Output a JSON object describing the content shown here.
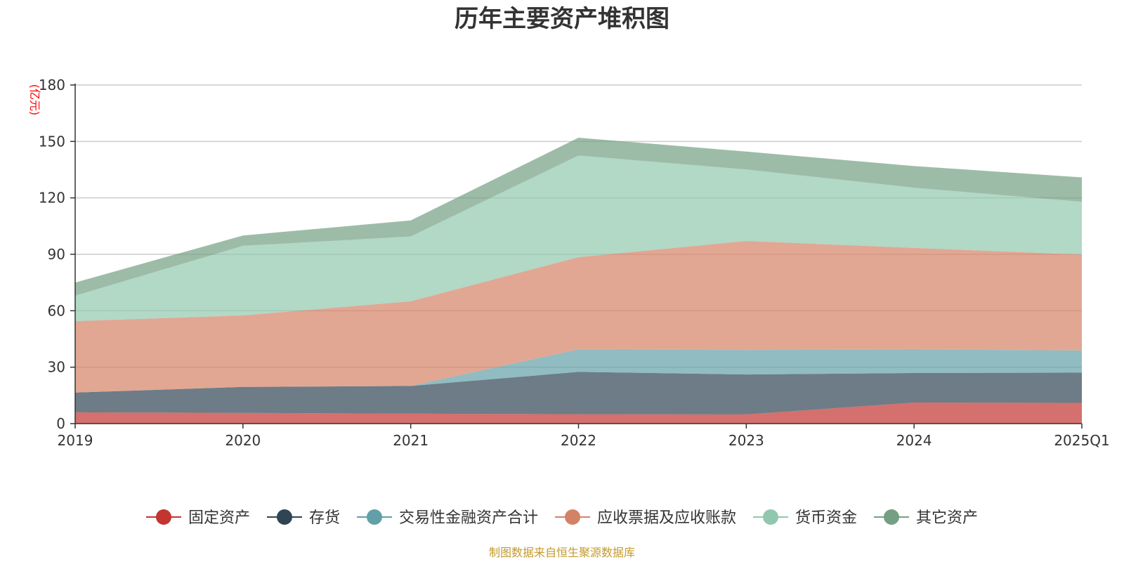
{
  "chart_data": {
    "type": "area",
    "stacked": true,
    "title": "历年主要资产堆积图",
    "ylabel": "(亿元)",
    "x": [
      "2019",
      "2020",
      "2021",
      "2022",
      "2023",
      "2024",
      "2025Q1"
    ],
    "ylim": [
      0,
      180
    ],
    "yticks": [
      0,
      30,
      60,
      90,
      120,
      150,
      180
    ],
    "grid": true,
    "legend_position": "bottom",
    "series": [
      {
        "name": "固定资产",
        "color": "#c23531",
        "values": [
          6.0,
          5.7,
          5.3,
          5.0,
          4.9,
          11.2,
          11.0
        ]
      },
      {
        "name": "存货",
        "color": "#2f4554",
        "values": [
          10.5,
          13.8,
          14.7,
          22.5,
          21.2,
          15.7,
          16.1
        ]
      },
      {
        "name": "交易性金融资产合计",
        "color": "#61a0a8",
        "values": [
          0.0,
          0.0,
          0.0,
          12.0,
          13.0,
          12.5,
          11.8
        ]
      },
      {
        "name": "应收票据及应收账款",
        "color": "#d48265",
        "values": [
          38.0,
          38.0,
          45.0,
          49.0,
          58.0,
          54.0,
          51.0
        ]
      },
      {
        "name": "货币资金",
        "color": "#91c7ae",
        "values": [
          13.5,
          37.0,
          34.5,
          54.0,
          38.0,
          32.0,
          28.0
        ]
      },
      {
        "name": "其它资产",
        "color": "#749f83",
        "values": [
          7.0,
          5.5,
          8.5,
          9.5,
          9.5,
          11.5,
          13.0
        ]
      }
    ],
    "source_note": "制图数据来自恒生聚源数据库"
  }
}
